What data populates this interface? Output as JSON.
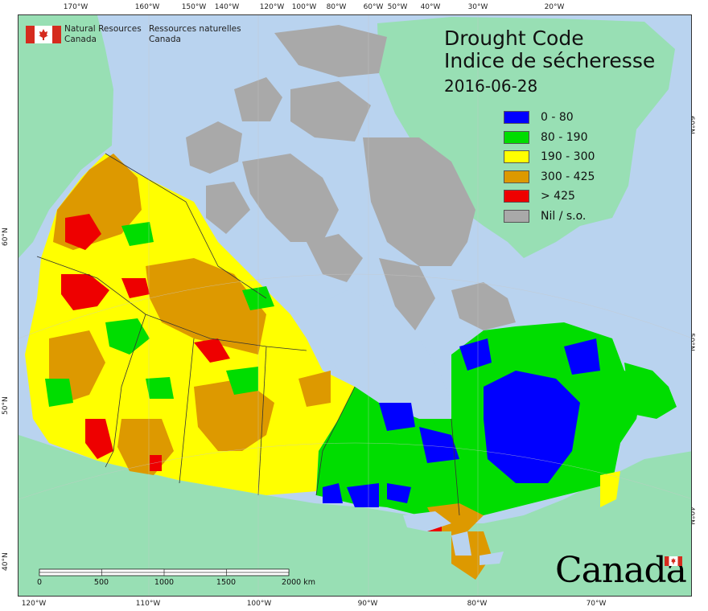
{
  "map": {
    "title_en": "Drought Code",
    "title_fr": "Indice de sécheresse",
    "date": "2016-06-28",
    "agency_en": [
      "Natural Resources",
      "Canada"
    ],
    "agency_fr": [
      "Ressources naturelles",
      "Canada"
    ],
    "wordmark": "Canada",
    "legend": [
      {
        "label": "0 - 80",
        "color": "#0000ff"
      },
      {
        "label": "80 - 190",
        "color": "#00dd00"
      },
      {
        "label": "190 - 300",
        "color": "#ffff00"
      },
      {
        "label": "300 - 425",
        "color": "#dd9900"
      },
      {
        "label": "> 425",
        "color": "#ee0000"
      },
      {
        "label": "Nil / s.o.",
        "color": "#a9a9a9"
      }
    ],
    "colors": {
      "water": "#b9d3ef",
      "foreign_land": "#98dfb4",
      "no_data": "#a9a9a9"
    },
    "longitude_ticks_top": [
      "170°W",
      "160°W",
      "150°W",
      "140°W",
      "120°W",
      "100°W",
      "80°W",
      "60°W",
      "50°W",
      "40°W",
      "30°W",
      "20°W"
    ],
    "longitude_ticks_bottom": [
      "120°W",
      "110°W",
      "100°W",
      "90°W",
      "80°W",
      "70°W"
    ],
    "latitude_ticks_left": [
      "60°N",
      "50°N",
      "40°N"
    ],
    "latitude_ticks_right": [
      "60°N",
      "50°N",
      "40°N"
    ],
    "scale": {
      "labels": [
        "0",
        "500",
        "1000",
        "1500",
        "2000 km"
      ]
    }
  }
}
